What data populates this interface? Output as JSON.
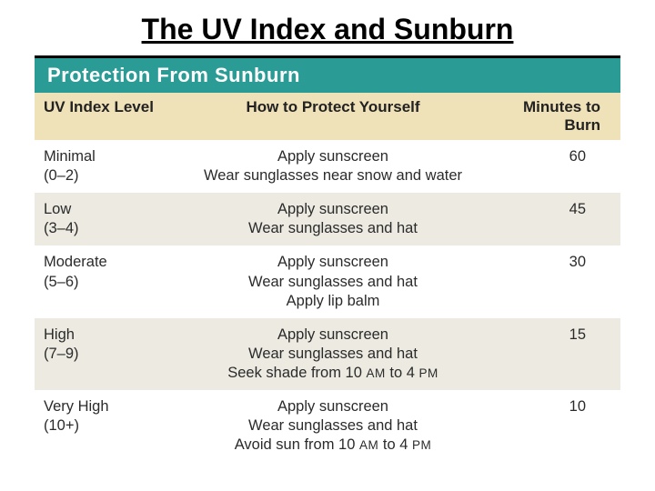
{
  "title": "The UV Index and Sunburn",
  "banner": "Protection From Sunburn",
  "headers": {
    "level": "UV Index Level",
    "protect": "How to Protect Yourself",
    "minutes": "Minutes to Burn"
  },
  "rows": [
    {
      "striped": false,
      "level_name": "Minimal",
      "level_range": "(0–2)",
      "protect_lines": [
        "Apply sunscreen",
        "Wear sunglasses near snow and water"
      ],
      "minutes": "60"
    },
    {
      "striped": true,
      "level_name": "Low",
      "level_range": "(3–4)",
      "protect_lines": [
        "Apply sunscreen",
        "Wear sunglasses and hat"
      ],
      "minutes": "45"
    },
    {
      "striped": false,
      "level_name": "Moderate",
      "level_range": "(5–6)",
      "protect_lines": [
        "Apply sunscreen",
        "Wear sunglasses and hat",
        "Apply lip balm"
      ],
      "minutes": "30"
    },
    {
      "striped": true,
      "level_name": "High",
      "level_range": "(7–9)",
      "protect_lines": [
        "Apply sunscreen",
        "Wear sunglasses and hat",
        "Seek shade from 10 AM to 4 PM"
      ],
      "minutes": "15"
    },
    {
      "striped": false,
      "level_name": "Very High",
      "level_range": "(10+)",
      "protect_lines": [
        "Apply sunscreen",
        "Wear sunglasses and hat",
        "Avoid sun from 10 AM to 4 PM"
      ],
      "minutes": "10"
    }
  ],
  "colors": {
    "banner_bg": "#2b9b96",
    "header_bg": "#efe1b8",
    "stripe_bg": "#eceae1",
    "text": "#2b2b2b"
  }
}
